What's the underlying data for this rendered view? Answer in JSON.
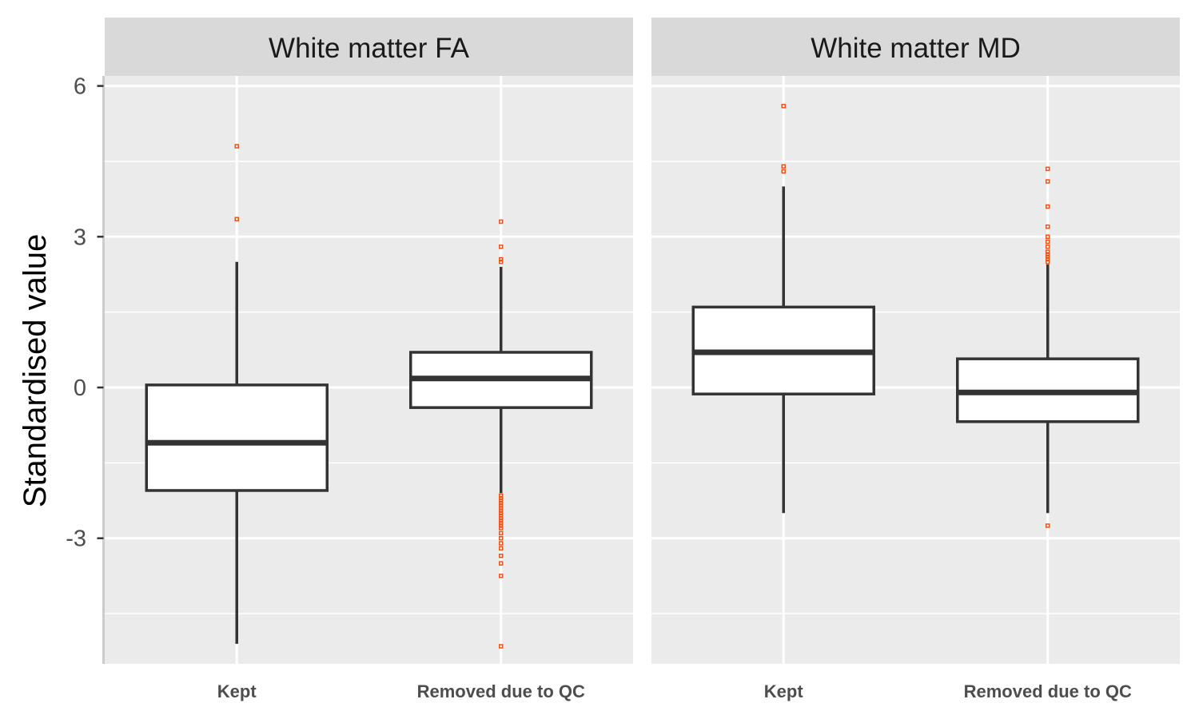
{
  "chart_data": {
    "type": "boxplot",
    "ylabel": "Standardised value",
    "xlabel": "",
    "ylim": [
      -5.5,
      6.2
    ],
    "yticks": [
      -3,
      0,
      3,
      6
    ],
    "ytick_labels": [
      "-3",
      "0",
      "3",
      "6"
    ],
    "grid": true,
    "categories": [
      "Kept",
      "Removed due to QC"
    ],
    "colors": {
      "panel_bg": "#ebebeb",
      "strip_bg": "#d9d9d9",
      "grid": "#ffffff",
      "box_line": "#333333",
      "box_fill": "#ffffff",
      "outlier": "#e8541c"
    },
    "panels": [
      {
        "title": "White matter FA",
        "boxes": [
          {
            "category": "Kept",
            "whisker_low": -5.1,
            "q1": -2.05,
            "median": -1.1,
            "q3": 0.05,
            "whisker_high": 2.5,
            "outliers": [
              3.35,
              4.8
            ]
          },
          {
            "category": "Removed due to QC",
            "whisker_low": -2.1,
            "q1": -0.4,
            "median": 0.18,
            "q3": 0.7,
            "whisker_high": 2.4,
            "outliers": [
              2.5,
              2.55,
              2.8,
              3.3,
              -2.15,
              -2.2,
              -2.25,
              -2.3,
              -2.35,
              -2.4,
              -2.45,
              -2.5,
              -2.55,
              -2.6,
              -2.65,
              -2.7,
              -2.75,
              -2.8,
              -2.9,
              -3.0,
              -3.1,
              -3.2,
              -3.35,
              -3.5,
              -3.75,
              -5.15
            ]
          }
        ]
      },
      {
        "title": "White matter MD",
        "boxes": [
          {
            "category": "Kept",
            "whisker_low": -2.5,
            "q1": -0.13,
            "median": 0.7,
            "q3": 1.6,
            "whisker_high": 4.0,
            "outliers": [
              4.3,
              4.4,
              5.6
            ]
          },
          {
            "category": "Removed due to QC",
            "whisker_low": -2.5,
            "q1": -0.68,
            "median": -0.1,
            "q3": 0.57,
            "whisker_high": 2.45,
            "outliers": [
              2.5,
              2.55,
              2.6,
              2.65,
              2.7,
              2.8,
              2.9,
              3.0,
              3.2,
              3.6,
              4.1,
              4.35,
              -2.75
            ]
          }
        ]
      }
    ]
  }
}
